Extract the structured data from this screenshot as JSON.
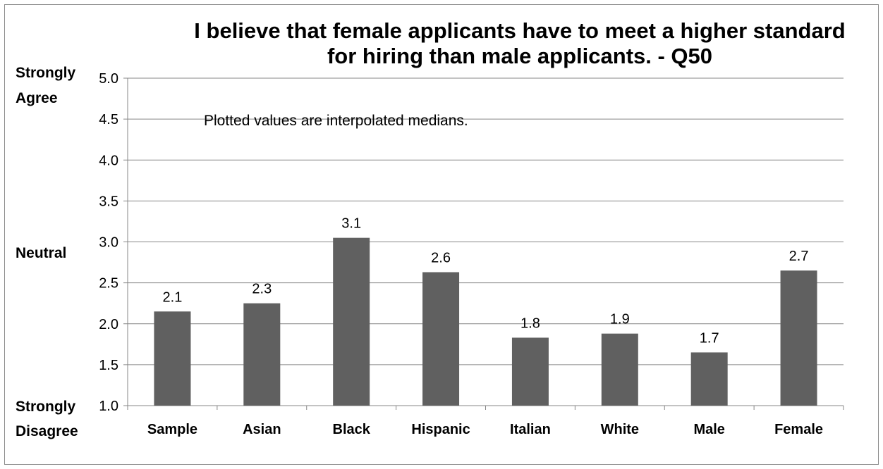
{
  "chart_data": {
    "type": "bar",
    "title_line1": "I believe that female applicants have to meet a higher standard",
    "title_line2": "for hiring than male applicants. - Q50",
    "annotation": "Plotted values are interpolated medians.",
    "categories": [
      "Sample",
      "Asian",
      "Black",
      "Hispanic",
      "Italian",
      "White",
      "Male",
      "Female"
    ],
    "values": [
      2.15,
      2.25,
      3.05,
      2.63,
      1.83,
      1.88,
      1.65,
      2.65
    ],
    "data_labels": [
      "2.1",
      "2.3",
      "3.1",
      "2.6",
      "1.8",
      "1.9",
      "1.7",
      "2.7"
    ],
    "yticks": [
      "1.0",
      "1.5",
      "2.0",
      "2.5",
      "3.0",
      "3.5",
      "4.0",
      "4.5",
      "5.0"
    ],
    "ylim": [
      1.0,
      5.0
    ],
    "grid": true,
    "bar_color": "#606060",
    "ylabels": {
      "top_line1": "Strongly",
      "top_line2": "Agree",
      "middle": "Neutral",
      "bottom_line1": "Strongly",
      "bottom_line2": "Disagree"
    }
  }
}
